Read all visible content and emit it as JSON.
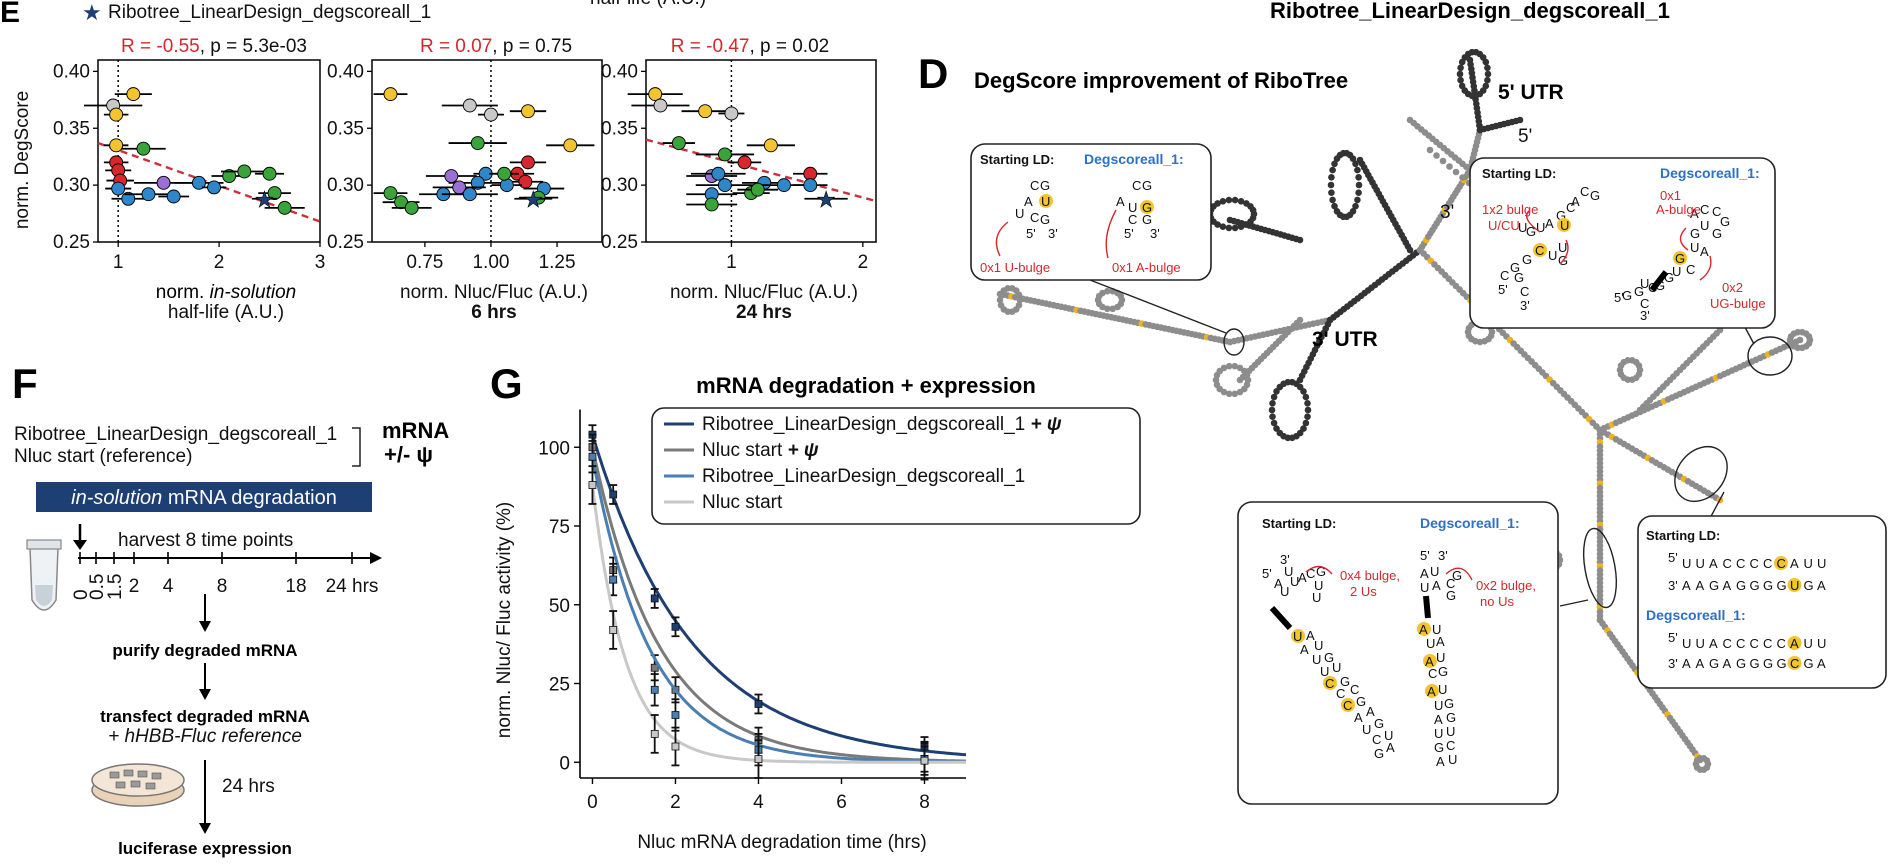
{
  "top": {
    "panel_e_letter": "E",
    "legend_star_label": "Ribotree_LinearDesign_degscoreall_1",
    "top_cut_text": "half-life (A.U.)",
    "top_right_title": "Ribotree_LinearDesign_degscoreall_1"
  },
  "panel_e": {
    "ylabel": "norm. DegScore",
    "subplots": [
      {
        "stat_r": "R = -0.55",
        "stat_p": ", p = 5.3e-03",
        "xlabel_1": "norm. ",
        "xlabel_italic": "in-solution",
        "xlabel_2": "half-life (A.U.)",
        "xticks": [
          "1",
          "2",
          "3"
        ]
      },
      {
        "stat_r": "R = 0.07",
        "stat_p": ", p = 0.75",
        "xlabel_1": "norm. Nluc/Fluc (A.U.)",
        "xlabel_bold": "6 hrs",
        "xticks": [
          "0.75",
          "1.00",
          "1.25"
        ]
      },
      {
        "stat_r": "R = -0.47",
        "stat_p": ", p = 0.02",
        "xlabel_1": "norm. Nluc/Fluc (A.U.)",
        "xlabel_bold": "24 hrs",
        "xticks": [
          "1",
          "2"
        ]
      }
    ],
    "yticks": [
      "0.40",
      "0.35",
      "0.30",
      "0.25"
    ]
  },
  "chart_data": [
    {
      "type": "scatter",
      "title": "R = -0.55, p = 5.3e-03",
      "xlabel": "norm. in-solution half-life (A.U.)",
      "ylabel": "norm. DegScore",
      "xlim": [
        0.8,
        3.0
      ],
      "ylim": [
        0.25,
        0.41
      ],
      "points": [
        {
          "x": 0.95,
          "y": 0.37,
          "c": "gray"
        },
        {
          "x": 0.98,
          "y": 0.362,
          "c": "yellow"
        },
        {
          "x": 1.15,
          "y": 0.38,
          "c": "yellow"
        },
        {
          "x": 0.98,
          "y": 0.335,
          "c": "yellow"
        },
        {
          "x": 1.25,
          "y": 0.332,
          "c": "green"
        },
        {
          "x": 0.98,
          "y": 0.32,
          "c": "red"
        },
        {
          "x": 1.0,
          "y": 0.313,
          "c": "red"
        },
        {
          "x": 1.02,
          "y": 0.304,
          "c": "red"
        },
        {
          "x": 1.0,
          "y": 0.297,
          "c": "blue"
        },
        {
          "x": 1.1,
          "y": 0.288,
          "c": "blue"
        },
        {
          "x": 1.3,
          "y": 0.292,
          "c": "blue"
        },
        {
          "x": 1.45,
          "y": 0.302,
          "c": "purple"
        },
        {
          "x": 1.8,
          "y": 0.302,
          "c": "blue"
        },
        {
          "x": 1.95,
          "y": 0.298,
          "c": "blue"
        },
        {
          "x": 1.55,
          "y": 0.29,
          "c": "blue"
        },
        {
          "x": 2.1,
          "y": 0.308,
          "c": "green"
        },
        {
          "x": 2.25,
          "y": 0.312,
          "c": "green"
        },
        {
          "x": 2.5,
          "y": 0.31,
          "c": "green"
        },
        {
          "x": 2.55,
          "y": 0.293,
          "c": "green"
        },
        {
          "x": 2.65,
          "y": 0.28,
          "c": "green"
        },
        {
          "x": 2.45,
          "y": 0.288,
          "c": "star"
        }
      ],
      "trend": {
        "x0": 0.8,
        "y0": 0.337,
        "x1": 3.0,
        "y1": 0.268
      }
    },
    {
      "type": "scatter",
      "title": "R = 0.07, p = 0.75",
      "xlabel": "norm. Nluc/Fluc (A.U.) 6 hrs",
      "ylabel": "norm. DegScore",
      "xlim": [
        0.55,
        1.42
      ],
      "ylim": [
        0.25,
        0.41
      ],
      "points": [
        {
          "x": 0.62,
          "y": 0.38,
          "c": "yellow"
        },
        {
          "x": 0.92,
          "y": 0.37,
          "c": "gray"
        },
        {
          "x": 1.0,
          "y": 0.362,
          "c": "gray"
        },
        {
          "x": 1.14,
          "y": 0.365,
          "c": "yellow"
        },
        {
          "x": 1.3,
          "y": 0.335,
          "c": "yellow"
        },
        {
          "x": 0.95,
          "y": 0.337,
          "c": "green"
        },
        {
          "x": 1.1,
          "y": 0.31,
          "c": "red"
        },
        {
          "x": 1.14,
          "y": 0.32,
          "c": "red"
        },
        {
          "x": 1.13,
          "y": 0.303,
          "c": "red"
        },
        {
          "x": 0.98,
          "y": 0.31,
          "c": "blue"
        },
        {
          "x": 0.95,
          "y": 0.302,
          "c": "blue"
        },
        {
          "x": 0.88,
          "y": 0.298,
          "c": "purple"
        },
        {
          "x": 0.85,
          "y": 0.308,
          "c": "purple"
        },
        {
          "x": 0.82,
          "y": 0.292,
          "c": "blue"
        },
        {
          "x": 0.92,
          "y": 0.292,
          "c": "blue"
        },
        {
          "x": 1.06,
          "y": 0.3,
          "c": "blue"
        },
        {
          "x": 1.2,
          "y": 0.297,
          "c": "blue"
        },
        {
          "x": 0.62,
          "y": 0.293,
          "c": "green"
        },
        {
          "x": 0.66,
          "y": 0.285,
          "c": "green"
        },
        {
          "x": 0.7,
          "y": 0.28,
          "c": "green"
        },
        {
          "x": 1.05,
          "y": 0.31,
          "c": "green"
        },
        {
          "x": 1.18,
          "y": 0.289,
          "c": "green"
        },
        {
          "x": 1.16,
          "y": 0.288,
          "c": "star"
        }
      ]
    },
    {
      "type": "scatter",
      "title": "R = -0.47, p = 0.02",
      "xlabel": "norm. Nluc/Fluc (A.U.) 24 hrs",
      "ylabel": "norm. DegScore",
      "xlim": [
        0.35,
        2.1
      ],
      "ylim": [
        0.25,
        0.41
      ],
      "points": [
        {
          "x": 0.42,
          "y": 0.38,
          "c": "yellow"
        },
        {
          "x": 0.46,
          "y": 0.37,
          "c": "gray"
        },
        {
          "x": 0.8,
          "y": 0.365,
          "c": "yellow"
        },
        {
          "x": 1.0,
          "y": 0.363,
          "c": "gray"
        },
        {
          "x": 1.3,
          "y": 0.335,
          "c": "yellow"
        },
        {
          "x": 0.6,
          "y": 0.337,
          "c": "green"
        },
        {
          "x": 0.95,
          "y": 0.327,
          "c": "green"
        },
        {
          "x": 1.1,
          "y": 0.32,
          "c": "red"
        },
        {
          "x": 1.6,
          "y": 0.31,
          "c": "red"
        },
        {
          "x": 0.85,
          "y": 0.308,
          "c": "purple"
        },
        {
          "x": 0.9,
          "y": 0.31,
          "c": "blue"
        },
        {
          "x": 0.95,
          "y": 0.3,
          "c": "blue"
        },
        {
          "x": 1.25,
          "y": 0.302,
          "c": "blue"
        },
        {
          "x": 1.4,
          "y": 0.3,
          "c": "blue"
        },
        {
          "x": 1.6,
          "y": 0.3,
          "c": "blue"
        },
        {
          "x": 0.85,
          "y": 0.292,
          "c": "blue"
        },
        {
          "x": 0.85,
          "y": 0.283,
          "c": "green"
        },
        {
          "x": 1.15,
          "y": 0.293,
          "c": "green"
        },
        {
          "x": 1.2,
          "y": 0.296,
          "c": "green"
        },
        {
          "x": 1.72,
          "y": 0.288,
          "c": "star"
        }
      ],
      "trend": {
        "x0": 0.35,
        "y0": 0.34,
        "x1": 2.1,
        "y1": 0.286
      }
    },
    {
      "type": "line",
      "title": "mRNA degradation + expression",
      "xlabel": "Nluc mRNA degradation time (hrs)",
      "ylabel": "norm. Nluc/ Fluc activity (%)",
      "xlim": [
        -0.3,
        9
      ],
      "ylim": [
        -5,
        115
      ],
      "xticks": [
        0,
        2,
        4,
        6,
        8
      ],
      "yticks": [
        0,
        25,
        50,
        75,
        100
      ],
      "series": [
        {
          "name": "Ribotree_LinearDesign_degscoreall_1 + ψ",
          "color": "#1d3f73",
          "k": 0.42,
          "points": [
            [
              0,
              104
            ],
            [
              0.5,
              85
            ],
            [
              1.5,
              52
            ],
            [
              2,
              43
            ],
            [
              4,
              18.5
            ],
            [
              8,
              5
            ]
          ]
        },
        {
          "name": "Nluc start + ψ",
          "color": "#7a7a7a",
          "k": 0.62,
          "points": [
            [
              0,
              100
            ],
            [
              0.5,
              61
            ],
            [
              1.5,
              30
            ],
            [
              2,
              23
            ],
            [
              4,
              7
            ],
            [
              8,
              1
            ]
          ]
        },
        {
          "name": "Ribotree_LinearDesign_degscoreall_1",
          "color": "#4a7fb3",
          "k": 0.72,
          "points": [
            [
              0,
              97
            ],
            [
              0.5,
              58
            ],
            [
              1.5,
              23
            ],
            [
              2,
              15
            ],
            [
              4,
              4
            ],
            [
              8,
              1
            ]
          ]
        },
        {
          "name": "Nluc start",
          "color": "#c8c8c8",
          "k": 1.25,
          "points": [
            [
              0,
              88
            ],
            [
              0.5,
              42
            ],
            [
              1.5,
              9
            ],
            [
              2,
              5
            ],
            [
              4,
              1
            ],
            [
              8,
              0.5
            ]
          ]
        }
      ]
    }
  ],
  "panel_f": {
    "letter": "F",
    "construct_1": "Ribotree_LinearDesign_degscoreall_1",
    "construct_2": "Nluc start (reference)",
    "mrna_label": "mRNA",
    "psi_label": "+/- ψ",
    "banner_italic": "in-solution",
    "banner_rest": " mRNA degradation",
    "harvest": "harvest 8 time points",
    "timepoints": [
      "0",
      "0.5",
      "1.5",
      "2",
      "4",
      "8",
      "18",
      "24 hrs"
    ],
    "step_1": "purify degraded mRNA",
    "step_2": "transfect degraded mRNA",
    "step_2_sub": "+ hHBB-Fluc reference",
    "incubate": "24 hrs",
    "step_3": "luciferase expression"
  },
  "panel_g": {
    "letter": "G",
    "title": "mRNA degradation + expression",
    "ylabel": "norm. Nluc/ Fluc activity (%)",
    "xlabel": "Nluc mRNA degradation time (hrs)",
    "yticks": [
      "100",
      "75",
      "50",
      "25",
      "0"
    ],
    "xticks": [
      "0",
      "2",
      "4",
      "6",
      "8"
    ],
    "legend": [
      {
        "text": "Ribotree_LinearDesign_degscoreall_1",
        "suffix": " + ψ"
      },
      {
        "text": "Nluc start",
        "suffix": " + ψ"
      },
      {
        "text": "Ribotree_LinearDesign_degscoreall_1",
        "suffix": ""
      },
      {
        "text": "Nluc start",
        "suffix": ""
      }
    ]
  },
  "panel_d": {
    "letter": "D",
    "title": "DegScore improvement of RiboTree",
    "utr5": "5' UTR",
    "utr3": "3' UTR",
    "prime5": "5'",
    "prime3": "3'",
    "starting_ld": "Starting LD:",
    "degscoreall": "Degscoreall_1:",
    "degscoreall_lc": "Degscoreall_1:",
    "box1_ann_left": "0x1 U-bulge",
    "box1_ann_right": "0x1 A-bulge",
    "box2_ann_left_1": "1x2 bulge",
    "box2_ann_left_2": "U/CU",
    "box2_ann_right_1": "0x1",
    "box2_ann_right_2": "A-bulge",
    "box2_ann_right_3": "0x2",
    "box2_ann_right_4": "UG-bulge",
    "box3_ann_left_1": "0x4 bulge,",
    "box3_ann_left_2": "2 Us",
    "box3_ann_right_1": "0x2 bulge,",
    "box3_ann_right_2": "no Us",
    "box4_top_start": "UUACCCCCAUU",
    "box4_bot_start": "AAGAGGGGUGA",
    "box4_top_deg": "UUACCCCCAUU",
    "box4_bot_deg": "AAGAGGGGCGA"
  }
}
